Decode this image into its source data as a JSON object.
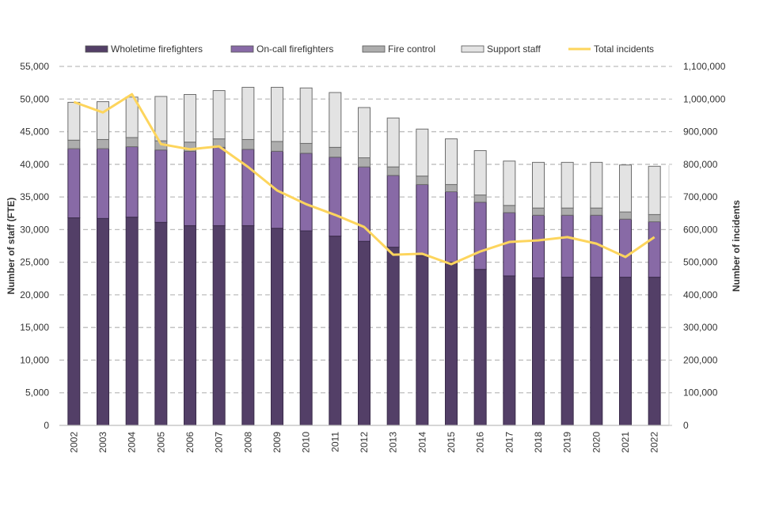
{
  "chart_data": {
    "type": "bar",
    "stacked": true,
    "title": "",
    "categories": [
      "2002",
      "2003",
      "2004",
      "2005",
      "2006",
      "2007",
      "2008",
      "2009",
      "2010",
      "2011",
      "2012",
      "2013",
      "2014",
      "2015",
      "2016",
      "2017",
      "2018",
      "2019",
      "2020",
      "2021",
      "2022"
    ],
    "series": [
      {
        "name": "Wholetime firefighters",
        "color": "#533f67",
        "axis": "left",
        "values": [
          31800,
          31700,
          31900,
          31100,
          30600,
          30600,
          30600,
          30200,
          29800,
          29000,
          28200,
          27300,
          26000,
          25000,
          23900,
          22900,
          22600,
          22700,
          22700,
          22700,
          22700
        ]
      },
      {
        "name": "On-call firefighters",
        "color": "#886aa6",
        "axis": "left",
        "values": [
          10600,
          10700,
          10800,
          11100,
          11400,
          12000,
          11700,
          11800,
          11900,
          12100,
          11400,
          11000,
          10900,
          10800,
          10300,
          9700,
          9600,
          9500,
          9500,
          8900,
          8500
        ]
      },
      {
        "name": "Fire control",
        "color": "#adadad",
        "axis": "left",
        "values": [
          1300,
          1400,
          1400,
          1400,
          1400,
          1300,
          1500,
          1500,
          1500,
          1500,
          1400,
          1300,
          1300,
          1100,
          1100,
          1100,
          1100,
          1100,
          1100,
          1100,
          1100
        ]
      },
      {
        "name": "Support staff",
        "color": "#e3e3e3",
        "axis": "left",
        "values": [
          5800,
          5800,
          6200,
          6800,
          7300,
          7400,
          8000,
          8300,
          8500,
          8400,
          7700,
          7500,
          7200,
          7000,
          6800,
          6800,
          7000,
          7000,
          7000,
          7200,
          7400
        ]
      },
      {
        "name": "Total incidents",
        "color": "#fdd55d",
        "type": "line",
        "axis": "right",
        "values": [
          991000,
          959000,
          1015000,
          862000,
          846000,
          855000,
          792000,
          720000,
          678000,
          645000,
          608000,
          523000,
          526000,
          494000,
          533000,
          562000,
          567000,
          577000,
          557000,
          516000,
          577000
        ]
      }
    ],
    "ylabel": "Number of staff (FTE)",
    "y2label": "Number of incidents",
    "xlabel": "",
    "ylim": [
      0,
      55000
    ],
    "y2lim": [
      0,
      1100000
    ],
    "yticks": [
      "0",
      "5,000",
      "10,000",
      "15,000",
      "20,000",
      "25,000",
      "30,000",
      "35,000",
      "40,000",
      "45,000",
      "50,000",
      "55,000"
    ],
    "y2ticks": [
      "0",
      "100,000",
      "200,000",
      "300,000",
      "400,000",
      "500,000",
      "600,000",
      "700,000",
      "800,000",
      "900,000",
      "1,000,000",
      "1,100,000"
    ],
    "grid": true,
    "legend_position": "top"
  }
}
